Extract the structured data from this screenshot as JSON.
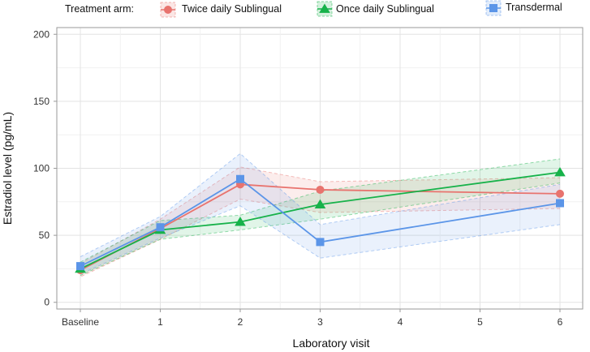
{
  "chart_data": {
    "type": "line",
    "title": "",
    "xlabel": "Laboratory visit",
    "ylabel": "Estradiol level (pg/mL)",
    "categories": [
      "Baseline",
      "1",
      "2",
      "3",
      "4",
      "5",
      "6"
    ],
    "ylim": [
      -5,
      205
    ],
    "yticks": [
      0,
      50,
      100,
      150,
      200
    ],
    "grid": true,
    "legend": {
      "title": "Treatment arm:",
      "placement": "top"
    },
    "series": [
      {
        "name": "Twice daily Sublingual",
        "color": "#e8736e",
        "marker": "circle",
        "x": [
          0,
          1,
          2,
          3,
          6
        ],
        "values": [
          24,
          55,
          88,
          84,
          81
        ],
        "lower": [
          19,
          47,
          77,
          67,
          70
        ],
        "upper": [
          29,
          62,
          101,
          90,
          93
        ]
      },
      {
        "name": "Once daily Sublingual",
        "color": "#17b24a",
        "marker": "triangle",
        "x": [
          0,
          1,
          2,
          3,
          6
        ],
        "values": [
          25,
          54,
          60,
          73,
          97
        ],
        "lower": [
          20,
          47,
          54,
          62,
          89
        ],
        "upper": [
          30,
          61,
          65,
          83,
          107
        ]
      },
      {
        "name": "Transdermal",
        "color": "#5b95e8",
        "marker": "square",
        "x": [
          0,
          1,
          2,
          3,
          6
        ],
        "values": [
          27,
          56,
          92,
          45,
          74
        ],
        "lower": [
          21,
          48,
          72,
          33,
          58
        ],
        "upper": [
          34,
          64,
          111,
          58,
          88
        ]
      }
    ]
  }
}
